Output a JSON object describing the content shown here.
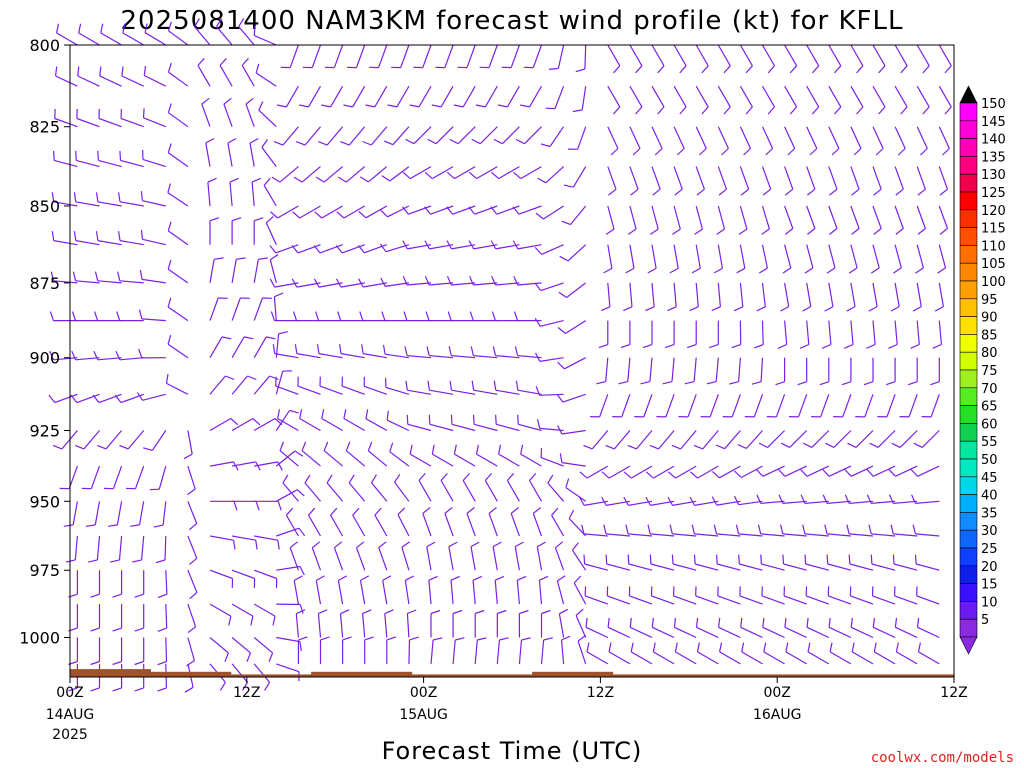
{
  "title": "2025081400 NAM3KM forecast wind profile (kt) for KFLL",
  "xlabel": "Forecast Time (UTC)",
  "credit": "coolwx.com/models",
  "barb_color": "#7b1fe8",
  "ground_color": "#a0522d",
  "chart_data": {
    "type": "wind-profile",
    "title": "2025081400 NAM3KM forecast wind profile (kt) for KFLL",
    "xlabel": "Forecast Time (UTC)",
    "units": "kt",
    "y_axis": {
      "inverted": true,
      "range": [
        1015,
        800
      ],
      "ticks": [
        800,
        825,
        850,
        875,
        900,
        925,
        950,
        975,
        1000
      ]
    },
    "x_axis": {
      "range_hours": [
        0,
        60
      ],
      "ticks": [
        {
          "hour": 0,
          "label": "00Z",
          "sub": "14AUG",
          "sub2": "2025"
        },
        {
          "hour": 12,
          "label": "12Z",
          "sub": "",
          "sub2": ""
        },
        {
          "hour": 24,
          "label": "00Z",
          "sub": "15AUG",
          "sub2": ""
        },
        {
          "hour": 36,
          "label": "12Z",
          "sub": "",
          "sub2": ""
        },
        {
          "hour": 48,
          "label": "00Z",
          "sub": "16AUG",
          "sub2": ""
        },
        {
          "hour": 60,
          "label": "12Z",
          "sub": "",
          "sub2": ""
        }
      ]
    },
    "surface_pressure": [
      1012,
      1012,
      1012,
      1012,
      1013,
      1013,
      1013,
      1013,
      1014,
      1014,
      1014,
      1014,
      1013,
      1013,
      1013,
      1013,
      1013,
      1014,
      1014,
      1014,
      1014,
      1014,
      1014,
      1013,
      1013,
      1013,
      1013,
      1014,
      1014,
      1014,
      1014,
      1014,
      1014,
      1014,
      1014,
      1014,
      1014,
      1014,
      1014,
      1014,
      1014,
      1014,
      1014,
      1014
    ],
    "colorbar": {
      "levels": [
        5,
        10,
        15,
        20,
        25,
        30,
        35,
        40,
        45,
        50,
        55,
        60,
        65,
        70,
        75,
        80,
        85,
        90,
        95,
        100,
        105,
        110,
        115,
        120,
        125,
        130,
        135,
        140,
        145,
        150
      ],
      "colors": [
        "#8a2be2",
        "#6a1cf0",
        "#3a10ff",
        "#1020e8",
        "#1040ff",
        "#1066ff",
        "#118cff",
        "#00b0ff",
        "#00d8e8",
        "#00e8c0",
        "#00e8a0",
        "#10d050",
        "#22e022",
        "#55ee22",
        "#a0f020",
        "#d0ff00",
        "#f0ff00",
        "#ffe000",
        "#ffc000",
        "#ffa000",
        "#ff8800",
        "#ff7000",
        "#ff5000",
        "#ff3000",
        "#ff0000",
        "#f0004a",
        "#ff0080",
        "#ff00b0",
        "#ff00d8",
        "#ff00ff"
      ],
      "arrow_top": "#000000",
      "arrow_bottom": "#8a2be2"
    },
    "barbs": {
      "pressure_levels": [
        800,
        812.5,
        825,
        837.5,
        850,
        862.5,
        875,
        887.5,
        900,
        912.5,
        925,
        937.5,
        950,
        962.5,
        975,
        987.5,
        1000,
        1010
      ],
      "time_step_hours": 1.5,
      "profiles": [
        {
          "hour_range": [
            0,
            9
          ],
          "direction_deg": [
            300,
            295,
            290,
            285,
            280,
            280,
            275,
            270,
            265,
            250,
            220,
            200,
            190,
            185,
            180,
            180,
            180,
            180
          ],
          "speed_kt": 10
        },
        {
          "hour_range": [
            9,
            15
          ],
          "direction_deg": [
            320,
            330,
            340,
            350,
            355,
            0,
            10,
            20,
            30,
            40,
            60,
            80,
            90,
            100,
            110,
            120,
            130,
            140
          ],
          "speed_kt": 10
        },
        {
          "hour_range": [
            15,
            24
          ],
          "direction_deg": [
            200,
            210,
            220,
            230,
            240,
            250,
            260,
            270,
            280,
            290,
            300,
            310,
            320,
            330,
            340,
            350,
            355,
            0
          ],
          "speed_kt": 10
        },
        {
          "hour_range": [
            24,
            36
          ],
          "direction_deg": [
            200,
            210,
            225,
            240,
            250,
            260,
            265,
            270,
            275,
            280,
            285,
            300,
            330,
            340,
            350,
            355,
            0,
            5
          ],
          "speed_kt": 10
        },
        {
          "hour_range": [
            36,
            48
          ],
          "direction_deg": [
            150,
            150,
            155,
            160,
            165,
            170,
            175,
            180,
            185,
            200,
            220,
            240,
            260,
            275,
            285,
            290,
            295,
            300
          ],
          "speed_kt": 10
        },
        {
          "hour_range": [
            48,
            60
          ],
          "direction_deg": [
            150,
            150,
            155,
            160,
            160,
            165,
            170,
            175,
            180,
            200,
            225,
            245,
            265,
            275,
            285,
            290,
            295,
            300
          ],
          "speed_kt": 10
        }
      ]
    }
  }
}
